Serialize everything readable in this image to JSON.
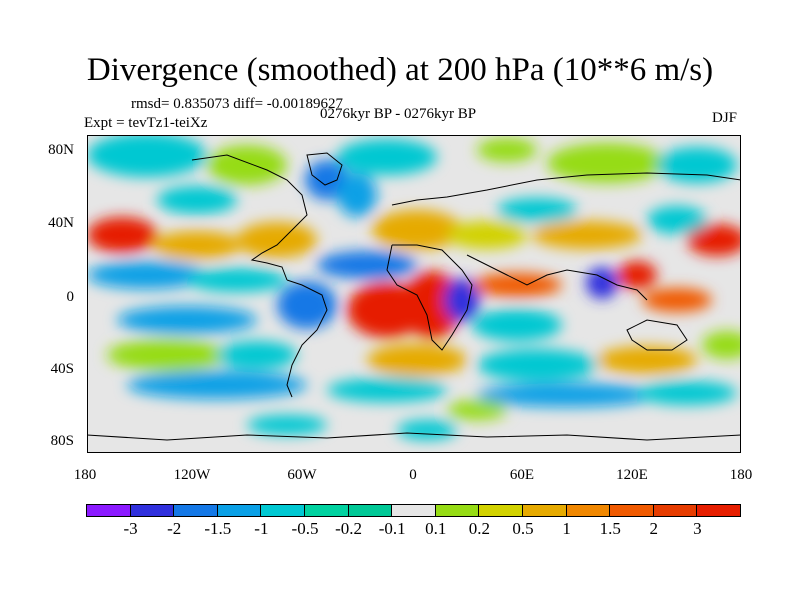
{
  "title": "Divergence (smoothed) at 200 hPa (10**6 m/s)",
  "stats": "rmsd= 0.835073 diff= -0.00189627",
  "period": "0276kyr BP - 0276kyr BP",
  "experiment": "Expt = tevTz1-teiXz",
  "season": "DJF",
  "map": {
    "projection": "cylindrical equidistant",
    "lat_labels": [
      "80N",
      "40N",
      "0",
      "40S",
      "80S"
    ],
    "lon_labels": [
      "180",
      "120W",
      "60W",
      "0",
      "60E",
      "120E",
      "180"
    ],
    "coastlines": true
  },
  "colorbar": {
    "labels": [
      "-3",
      "-2",
      "-1.5",
      "-1",
      "-0.5",
      "-0.2",
      "-0.1",
      "0.1",
      "0.2",
      "0.5",
      "1",
      "1.5",
      "2",
      "3"
    ],
    "colors": [
      "#8b1aff",
      "#3030dd",
      "#1478e6",
      "#0aa0e6",
      "#00c8d2",
      "#00d2a0",
      "#e6e6e6",
      "#96dc14",
      "#d2d200",
      "#e6aa00",
      "#f08700",
      "#f05a00",
      "#e61e00"
    ],
    "undetermined_bin_note": "",
    "end_colors": {
      "low": "#8b1aff",
      "high": "#e61e00"
    }
  }
}
